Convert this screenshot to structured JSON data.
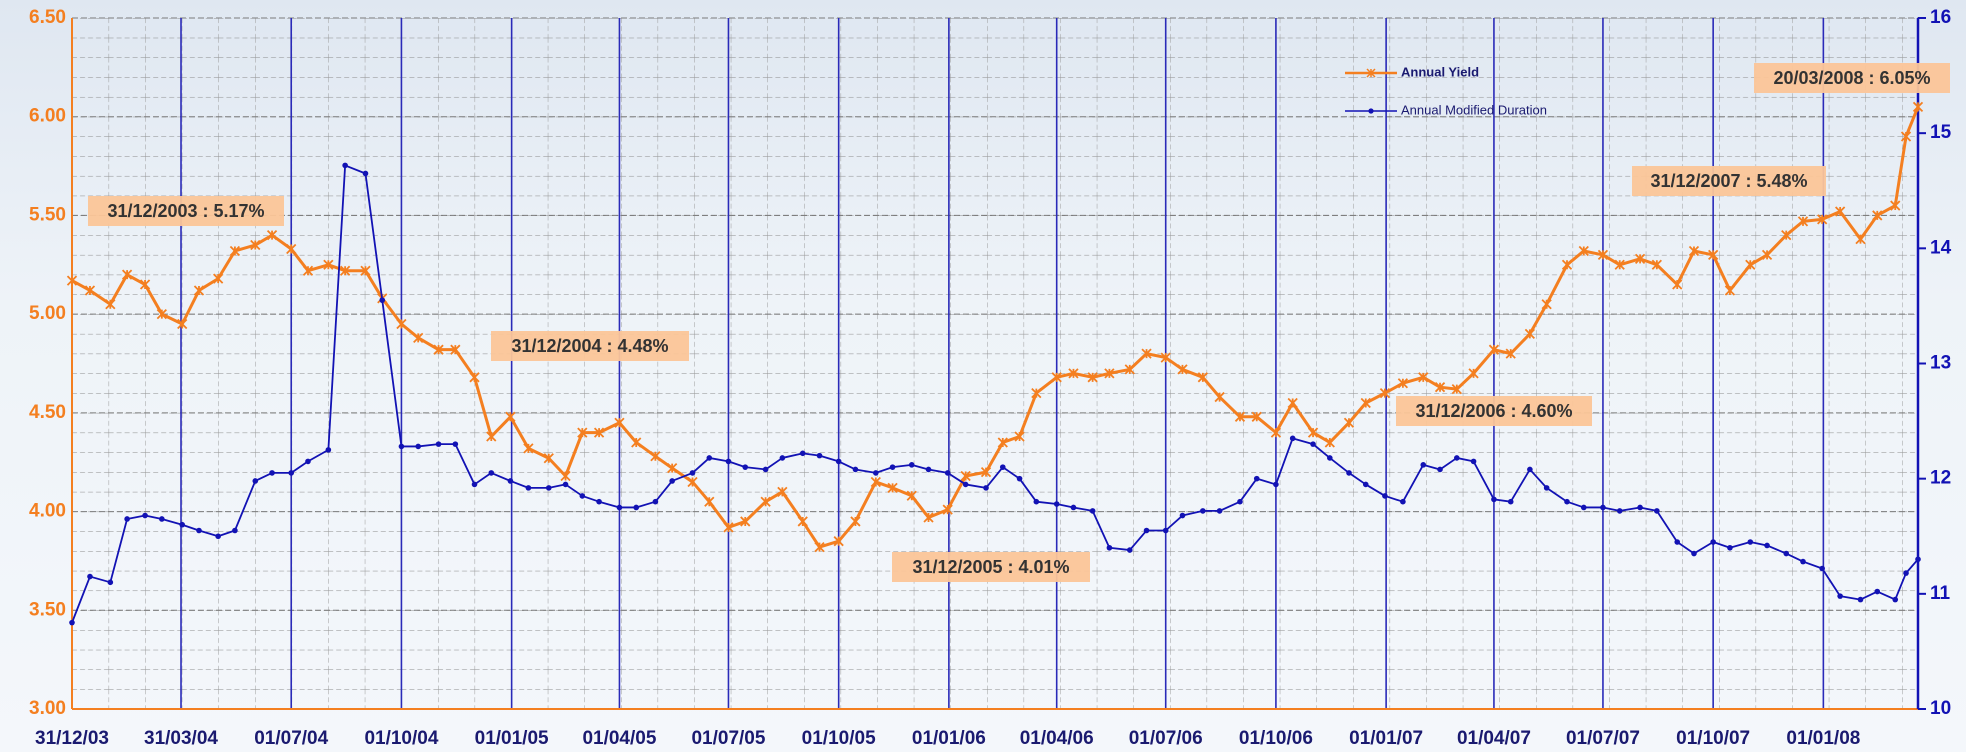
{
  "chart_data": {
    "type": "line",
    "xlim": [
      "2003-12-31",
      "2008-03-20"
    ],
    "xticks": [
      {
        "value": "2003-12-31",
        "label": "31/12/03"
      },
      {
        "value": "2004-03-31",
        "label": "31/03/04"
      },
      {
        "value": "2004-07-01",
        "label": "01/07/04"
      },
      {
        "value": "2004-10-01",
        "label": "01/10/04"
      },
      {
        "value": "2005-01-01",
        "label": "01/01/05"
      },
      {
        "value": "2005-04-01",
        "label": "01/04/05"
      },
      {
        "value": "2005-07-01",
        "label": "01/07/05"
      },
      {
        "value": "2005-10-01",
        "label": "01/10/05"
      },
      {
        "value": "2006-01-01",
        "label": "01/01/06"
      },
      {
        "value": "2006-04-01",
        "label": "01/04/06"
      },
      {
        "value": "2006-07-01",
        "label": "01/07/06"
      },
      {
        "value": "2006-10-01",
        "label": "01/10/06"
      },
      {
        "value": "2007-01-01",
        "label": "01/01/07"
      },
      {
        "value": "2007-04-01",
        "label": "01/04/07"
      },
      {
        "value": "2007-07-01",
        "label": "01/07/07"
      },
      {
        "value": "2007-10-01",
        "label": "01/10/07"
      },
      {
        "value": "2008-01-01",
        "label": "01/01/08"
      }
    ],
    "ylim": [
      3,
      6.5
    ],
    "yticks": [
      {
        "value": 3,
        "label": "3.00"
      },
      {
        "value": 3.5,
        "label": "3.50"
      },
      {
        "value": 4,
        "label": "4.00"
      },
      {
        "value": 4.5,
        "label": "4.50"
      },
      {
        "value": 5,
        "label": "5.00"
      },
      {
        "value": 5.5,
        "label": "5.50"
      },
      {
        "value": 6,
        "label": "6.00"
      },
      {
        "value": 6.5,
        "label": "6.50"
      }
    ],
    "y2lim": [
      10,
      16
    ],
    "y2ticks": [
      10,
      11,
      12,
      13,
      14,
      15,
      16
    ],
    "grid": true,
    "x": [
      "2003-12-31",
      "2004-01-15",
      "2004-02-01",
      "2004-02-15",
      "2004-03-01",
      "2004-03-15",
      "2004-04-01",
      "2004-04-15",
      "2004-05-01",
      "2004-05-15",
      "2004-06-01",
      "2004-06-15",
      "2004-07-01",
      "2004-07-15",
      "2004-08-01",
      "2004-08-15",
      "2004-09-01",
      "2004-09-15",
      "2004-10-01",
      "2004-10-15",
      "2004-11-01",
      "2004-11-15",
      "2004-12-01",
      "2004-12-15",
      "2004-12-31",
      "2005-01-15",
      "2005-02-01",
      "2005-02-15",
      "2005-03-01",
      "2005-03-15",
      "2005-04-01",
      "2005-04-15",
      "2005-05-01",
      "2005-05-15",
      "2005-06-01",
      "2005-06-15",
      "2005-07-01",
      "2005-07-15",
      "2005-08-01",
      "2005-08-15",
      "2005-09-01",
      "2005-09-15",
      "2005-10-01",
      "2005-10-15",
      "2005-11-01",
      "2005-11-15",
      "2005-12-01",
      "2005-12-15",
      "2005-12-31",
      "2006-01-15",
      "2006-02-01",
      "2006-02-15",
      "2006-03-01",
      "2006-03-15",
      "2006-04-01",
      "2006-04-15",
      "2006-05-01",
      "2006-05-15",
      "2006-06-01",
      "2006-06-15",
      "2006-07-01",
      "2006-07-15",
      "2006-08-01",
      "2006-08-15",
      "2006-09-01",
      "2006-09-15",
      "2006-10-01",
      "2006-10-15",
      "2006-11-01",
      "2006-11-15",
      "2006-12-01",
      "2006-12-15",
      "2006-12-31",
      "2007-01-15",
      "2007-02-01",
      "2007-02-15",
      "2007-03-01",
      "2007-03-15",
      "2007-04-01",
      "2007-04-15",
      "2007-05-01",
      "2007-05-15",
      "2007-06-01",
      "2007-06-15",
      "2007-07-01",
      "2007-07-15",
      "2007-08-01",
      "2007-08-15",
      "2007-09-01",
      "2007-09-15",
      "2007-10-01",
      "2007-10-15",
      "2007-11-01",
      "2007-11-15",
      "2007-12-01",
      "2007-12-15",
      "2007-12-31",
      "2008-01-15",
      "2008-02-01",
      "2008-02-15",
      "2008-03-01",
      "2008-03-10",
      "2008-03-20"
    ],
    "series": [
      {
        "name": "Annual Yield",
        "color": "#f47f20",
        "axis": "y",
        "values": [
          5.17,
          5.12,
          5.05,
          5.2,
          5.15,
          5.0,
          4.95,
          5.12,
          5.18,
          5.32,
          5.35,
          5.4,
          5.33,
          5.22,
          5.25,
          5.22,
          5.22,
          5.08,
          4.95,
          4.88,
          4.82,
          4.82,
          4.68,
          4.38,
          4.48,
          4.32,
          4.27,
          4.18,
          4.4,
          4.4,
          4.45,
          4.35,
          4.28,
          4.22,
          4.15,
          4.05,
          3.92,
          3.95,
          4.05,
          4.1,
          3.95,
          3.82,
          3.85,
          3.95,
          4.15,
          4.12,
          4.08,
          3.97,
          4.01,
          4.18,
          4.2,
          4.35,
          4.38,
          4.6,
          4.68,
          4.7,
          4.68,
          4.7,
          4.72,
          4.8,
          4.78,
          4.72,
          4.68,
          4.58,
          4.48,
          4.48,
          4.4,
          4.55,
          4.4,
          4.35,
          4.45,
          4.55,
          4.6,
          4.65,
          4.68,
          4.63,
          4.62,
          4.7,
          4.82,
          4.8,
          4.9,
          5.05,
          5.25,
          5.32,
          5.3,
          5.25,
          5.28,
          5.25,
          5.15,
          5.32,
          5.3,
          5.12,
          5.25,
          5.3,
          5.4,
          5.47,
          5.48,
          5.52,
          5.38,
          5.5,
          5.55,
          5.9,
          6.05
        ]
      },
      {
        "name": "Annual Modified Duration",
        "color": "#1212b4",
        "axis": "y2",
        "values": [
          10.75,
          11.15,
          11.1,
          11.65,
          11.68,
          11.65,
          11.6,
          11.55,
          11.5,
          11.55,
          11.98,
          12.05,
          12.05,
          12.15,
          12.25,
          14.72,
          14.65,
          13.55,
          12.28,
          12.28,
          12.3,
          12.3,
          11.95,
          12.05,
          11.98,
          11.92,
          11.92,
          11.95,
          11.85,
          11.8,
          11.75,
          11.75,
          11.8,
          11.98,
          12.05,
          12.18,
          12.15,
          12.1,
          12.08,
          12.18,
          12.22,
          12.2,
          12.15,
          12.08,
          12.05,
          12.1,
          12.12,
          12.08,
          12.05,
          11.95,
          11.92,
          12.1,
          12.0,
          11.8,
          11.78,
          11.75,
          11.72,
          11.4,
          11.38,
          11.55,
          11.55,
          11.68,
          11.72,
          11.72,
          11.8,
          12.0,
          11.95,
          12.35,
          12.3,
          12.18,
          12.05,
          11.95,
          11.85,
          11.8,
          12.12,
          12.08,
          12.18,
          12.15,
          11.82,
          11.8,
          12.08,
          11.92,
          11.8,
          11.75,
          11.75,
          11.72,
          11.75,
          11.72,
          11.45,
          11.35,
          11.45,
          11.4,
          11.45,
          11.42,
          11.35,
          11.28,
          11.22,
          10.98,
          10.95,
          11.02,
          10.95,
          11.18,
          11.3
        ]
      }
    ],
    "annotations": [
      "31/12/2003 : 5.17%",
      "31/12/2004 : 4.48%",
      "31/12/2005 : 4.01%",
      "31/12/2006 : 4.60%",
      "31/12/2007 : 5.48%",
      "20/03/2008 : 6.05%"
    ]
  }
}
